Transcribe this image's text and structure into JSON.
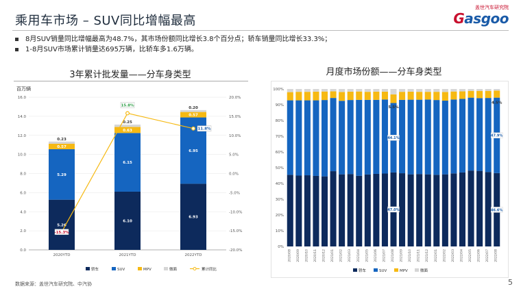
{
  "header": {
    "title": "乘用车市场 – SUV同比增幅最高",
    "logo_top": "盖世汽车研究院",
    "logo_word_main": "asgoo",
    "logo_word_g": "G"
  },
  "bullets": [
    "8月SUV销量同比增幅最高为48.7%，其市场份额同比增长3.8个百分点；轿车销量同比增长33.3%；",
    "1-8月SUV市场累计销量达695万辆，比轿车多1.6万辆。"
  ],
  "colors": {
    "sedan": "#0d2a5c",
    "suv": "#1565c0",
    "mpv": "#f6b913",
    "minivan": "#d6d6d6",
    "growth_line": "#f6b913"
  },
  "chart_data": [
    {
      "type": "bar",
      "title": "3年累计批发量——分车身类型",
      "ylabel": "百万辆",
      "ylim": [
        0,
        16
      ],
      "y2lim": [
        -20,
        20
      ],
      "y_ticks": [
        "0.0",
        "2.0",
        "4.0",
        "6.0",
        "8.0",
        "10.0",
        "12.0",
        "14.0",
        "16.0"
      ],
      "y2_ticks": [
        "20.0%",
        "15.0%",
        "10.0%",
        "5.0%",
        "0.0%",
        "-5.0%",
        "-10.0%",
        "-15.0%",
        "-20.0%"
      ],
      "categories": [
        "2020YTD",
        "2021YTD",
        "2022YTD"
      ],
      "series": [
        {
          "name": "轿车",
          "values": [
            5.26,
            6.1,
            6.93
          ],
          "labels": [
            "5.26",
            "6.10",
            "6.93"
          ]
        },
        {
          "name": "SUV",
          "values": [
            5.29,
            6.15,
            6.95
          ],
          "labels": [
            "5.29",
            "6.15",
            "6.95"
          ]
        },
        {
          "name": "MPV",
          "values": [
            0.57,
            0.63,
            0.57
          ],
          "labels": [
            "0.57",
            "0.63",
            "0.57"
          ]
        },
        {
          "name": "微面",
          "values": [
            0.23,
            0.25,
            0.2
          ],
          "labels": [
            "0.23",
            "0.25",
            "0.20"
          ]
        }
      ],
      "line": {
        "name": "累计同比",
        "values": [
          -15.3,
          15.8,
          11.8
        ],
        "labels": [
          "-15.3%",
          "15.8%",
          "11.8%"
        ]
      },
      "legend": [
        "轿车",
        "SUV",
        "MPV",
        "微面",
        "累计同比"
      ],
      "legend_position": "bottom"
    },
    {
      "type": "bar",
      "stacked_percent": true,
      "title": "月度市场份额——分车身类型",
      "ylim": [
        0,
        100
      ],
      "y_ticks": [
        "0%",
        "10%",
        "20%",
        "30%",
        "40%",
        "50%",
        "60%",
        "70%",
        "80%",
        "90%",
        "100%"
      ],
      "categories": [
        "2020/08",
        "2020/09",
        "2020/10",
        "2020/11",
        "2020/12",
        "2021/01",
        "2021/02",
        "2021/03",
        "2021/04",
        "2021/05",
        "2021/06",
        "2021/07",
        "2021/08",
        "2021/09",
        "2021/10",
        "2021/11",
        "2021/12",
        "2022/01",
        "2022/02",
        "2022/03",
        "2022/04",
        "2022/05",
        "2022/06",
        "2022/07",
        "2022/08"
      ],
      "series": [
        {
          "name": "轿车",
          "values": [
            45.5,
            45.0,
            45.2,
            44.8,
            44.5,
            47.8,
            45.8,
            46.0,
            44.9,
            45.7,
            46.1,
            46.3,
            47.0,
            46.5,
            45.8,
            46.0,
            45.8,
            45.5,
            45.8,
            46.4,
            47.0,
            48.2,
            48.0,
            47.3,
            46.6
          ]
        },
        {
          "name": "SUV",
          "values": [
            47.3,
            47.8,
            47.6,
            48.0,
            48.5,
            46.5,
            46.7,
            47.0,
            48.2,
            47.4,
            47.0,
            47.0,
            44.1,
            46.6,
            47.4,
            47.2,
            47.5,
            47.5,
            46.8,
            46.9,
            46.7,
            46.3,
            46.2,
            47.0,
            47.9
          ]
        },
        {
          "name": "MPV",
          "values": [
            5.2,
            5.4,
            5.4,
            5.5,
            5.4,
            4.2,
            5.6,
            5.3,
            5.3,
            5.1,
            5.2,
            5.0,
            5.5,
            5.1,
            5.1,
            5.0,
            4.9,
            5.2,
            5.5,
            5.1,
            4.8,
            4.3,
            4.6,
            4.5,
            4.5
          ]
        },
        {
          "name": "微面",
          "values": [
            2.0,
            1.8,
            1.8,
            1.7,
            1.6,
            1.5,
            1.9,
            1.7,
            1.6,
            1.8,
            1.7,
            1.7,
            3.4,
            1.8,
            1.7,
            1.8,
            1.8,
            1.8,
            1.9,
            1.6,
            1.5,
            1.2,
            1.2,
            1.2,
            1.0
          ]
        }
      ],
      "point_labels": [
        {
          "index": 12,
          "series": "轿车",
          "text": "47.0%"
        },
        {
          "index": 12,
          "series": "SUV",
          "text": "44.1%"
        },
        {
          "index": 12,
          "series": "MPV",
          "text": "5.5%"
        },
        {
          "index": 24,
          "series": "轿车",
          "text": "46.6%"
        },
        {
          "index": 24,
          "series": "SUV",
          "text": "47.9%"
        },
        {
          "index": 24,
          "series": "MPV",
          "text": "4.5%"
        }
      ],
      "legend": [
        "轿车",
        "SUV",
        "MPV",
        "微面"
      ],
      "legend_position": "bottom"
    }
  ],
  "footer": {
    "source": "数据来源：盖世汽车研究院、中汽协",
    "page": "5"
  }
}
